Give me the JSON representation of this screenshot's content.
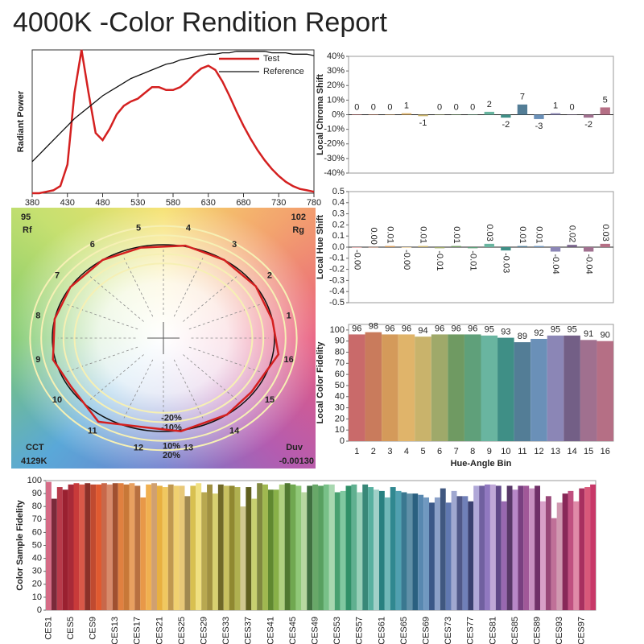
{
  "title": "4000K -Color Rendition Report",
  "chart_data": [
    {
      "type": "line",
      "ylabel": "Radiant Power",
      "x": [
        380,
        390,
        400,
        410,
        420,
        430,
        440,
        450,
        460,
        470,
        480,
        490,
        500,
        510,
        520,
        530,
        540,
        550,
        560,
        570,
        580,
        590,
        600,
        610,
        620,
        630,
        640,
        650,
        660,
        670,
        680,
        690,
        700,
        710,
        720,
        730,
        740,
        750,
        760,
        770,
        780
      ],
      "xlim": [
        380,
        780
      ],
      "xticks": [
        380,
        430,
        480,
        530,
        580,
        630,
        680,
        730,
        780
      ],
      "ylim": [
        0,
        1
      ],
      "legend": "upper right",
      "series": [
        {
          "name": "Test",
          "color": "#d42020",
          "values": [
            0,
            0,
            0.01,
            0.02,
            0.05,
            0.2,
            0.7,
            1.0,
            0.7,
            0.42,
            0.37,
            0.45,
            0.55,
            0.61,
            0.64,
            0.66,
            0.7,
            0.74,
            0.74,
            0.72,
            0.72,
            0.74,
            0.78,
            0.83,
            0.87,
            0.89,
            0.86,
            0.78,
            0.68,
            0.57,
            0.47,
            0.38,
            0.3,
            0.23,
            0.17,
            0.12,
            0.08,
            0.05,
            0.03,
            0.02,
            0.01
          ]
        },
        {
          "name": "Reference",
          "color": "#111111",
          "values": [
            0.22,
            0.27,
            0.32,
            0.37,
            0.42,
            0.47,
            0.52,
            0.56,
            0.6,
            0.64,
            0.68,
            0.71,
            0.74,
            0.77,
            0.8,
            0.82,
            0.84,
            0.86,
            0.88,
            0.9,
            0.91,
            0.93,
            0.94,
            0.95,
            0.96,
            0.97,
            0.97,
            0.98,
            0.98,
            0.99,
            0.99,
            0.99,
            0.99,
            0.99,
            0.98,
            0.98,
            0.98,
            0.97,
            0.97,
            0.97,
            0.96
          ]
        }
      ]
    },
    {
      "type": "vector",
      "rf": 95,
      "rf_label": "Rf",
      "rg": 102,
      "rg_label": "Rg",
      "cct_label": "CCT",
      "cct": "4129K",
      "duv_label": "Duv",
      "duv": "-0.00130",
      "bins": [
        1,
        2,
        3,
        4,
        5,
        6,
        7,
        8,
        9,
        10,
        11,
        12,
        13,
        14,
        15,
        16
      ],
      "rings": [
        {
          "value": -20,
          "label": "-20%"
        },
        {
          "value": -10,
          "label": "-10%"
        },
        {
          "value": 10,
          "label": "10%"
        },
        {
          "value": 20,
          "label": "20%"
        }
      ],
      "test_color": "#d42020",
      "reference_color": "#111111"
    },
    {
      "type": "bar",
      "ylabel": "Local Chroma Shift",
      "values": [
        0,
        0,
        0,
        1,
        -1,
        0,
        0,
        0,
        2,
        -2,
        7,
        -3,
        1,
        0,
        -2,
        5
      ],
      "colors": [
        "#c96a6a",
        "#c97b5c",
        "#d49a5a",
        "#e0b46a",
        "#c9b36b",
        "#9fa96a",
        "#6f9a62",
        "#5fa07a",
        "#69b5a0",
        "#3f8f86",
        "#537d96",
        "#6a90b8",
        "#8b86b6",
        "#735f86",
        "#a0708f",
        "#b56f85"
      ],
      "ylim": [
        -40,
        40
      ],
      "yticks": [
        {
          "value": -40,
          "label": "-40%"
        },
        {
          "value": -30,
          "label": "-30%"
        },
        {
          "value": -20,
          "label": "-20%"
        },
        {
          "value": -10,
          "label": "-10%"
        },
        {
          "value": 0,
          "label": "0%"
        },
        {
          "value": 10,
          "label": "10%"
        },
        {
          "value": 20,
          "label": "20%"
        },
        {
          "value": 30,
          "label": "30%"
        },
        {
          "value": 40,
          "label": "40%"
        }
      ]
    },
    {
      "type": "bar",
      "ylabel": "Local Hue Shift",
      "values": [
        -0.001,
        0.001,
        0.01,
        -0.001,
        0.01,
        -0.01,
        0.01,
        -0.01,
        0.03,
        -0.03,
        0.01,
        0.01,
        -0.04,
        0.02,
        -0.04,
        0.03
      ],
      "value_labels": [
        "-0.00",
        "0.00",
        "0.01",
        "-0.00",
        "0.01",
        "-0.01",
        "0.01",
        "-0.01",
        "0.03",
        "-0.03",
        "0.01",
        "0.01",
        "-0.04",
        "0.02",
        "-0.04",
        "0.03"
      ],
      "colors": [
        "#c96a6a",
        "#c97b5c",
        "#d49a5a",
        "#e0b46a",
        "#c9b36b",
        "#9fa96a",
        "#6f9a62",
        "#5fa07a",
        "#69b5a0",
        "#3f8f86",
        "#537d96",
        "#6a90b8",
        "#8b86b6",
        "#735f86",
        "#a0708f",
        "#b56f85"
      ],
      "ylim": [
        -0.5,
        0.5
      ],
      "yticks": [
        -0.5,
        -0.4,
        -0.3,
        -0.2,
        -0.1,
        {
          "value": 0,
          "label": "0.0"
        },
        0.1,
        0.2,
        0.3,
        0.4,
        0.5
      ]
    },
    {
      "type": "bar",
      "ylabel": "Local Color Fidelity",
      "xlabel": "Hue-Angle Bin",
      "categories": [
        1,
        2,
        3,
        4,
        5,
        6,
        7,
        8,
        9,
        10,
        11,
        12,
        13,
        14,
        15,
        16
      ],
      "values": [
        96,
        98,
        96,
        96,
        94,
        96,
        96,
        96,
        95,
        93,
        89,
        92,
        95,
        95,
        91,
        90
      ],
      "colors": [
        "#c96a6a",
        "#c97b5c",
        "#d49a5a",
        "#e0b46a",
        "#c9b36b",
        "#9fa96a",
        "#6f9a62",
        "#5fa07a",
        "#69b5a0",
        "#3f8f86",
        "#537d96",
        "#6a90b8",
        "#8b86b6",
        "#735f86",
        "#a0708f",
        "#b56f85"
      ],
      "ylim": [
        0,
        105
      ],
      "yticks": [
        0,
        10,
        20,
        30,
        40,
        50,
        60,
        70,
        80,
        90,
        100
      ]
    },
    {
      "type": "bar",
      "ylabel": "Color Sample Fidelity",
      "categories": [
        "CES1",
        null,
        null,
        null,
        "CES5",
        null,
        null,
        null,
        "CES9",
        null,
        null,
        null,
        "CES13",
        null,
        null,
        null,
        "CES17",
        null,
        null,
        null,
        "CES21",
        null,
        null,
        null,
        "CES25",
        null,
        null,
        null,
        "CES29",
        null,
        null,
        null,
        "CES33",
        null,
        null,
        null,
        "CES37",
        null,
        null,
        null,
        "CES41",
        null,
        null,
        null,
        "CES45",
        null,
        null,
        null,
        "CES49",
        null,
        null,
        null,
        "CES53",
        null,
        null,
        null,
        "CES57",
        null,
        null,
        null,
        "CES61",
        null,
        null,
        null,
        "CES65",
        null,
        null,
        null,
        "CES69",
        null,
        null,
        null,
        "CES73",
        null,
        null,
        null,
        "CES77",
        null,
        null,
        null,
        "CES81",
        null,
        null,
        null,
        "CES85",
        null,
        null,
        null,
        "CES89",
        null,
        null,
        null,
        "CES93",
        null,
        null,
        null,
        "CES97",
        null,
        null
      ],
      "values": [
        99,
        86,
        95,
        93,
        97,
        98,
        97,
        98,
        97,
        97,
        98,
        97,
        98,
        98,
        97,
        98,
        96,
        87,
        97,
        98,
        96,
        95,
        97,
        96,
        96,
        88,
        96,
        98,
        91,
        97,
        90,
        97,
        96,
        96,
        95,
        80,
        95,
        86,
        98,
        97,
        93,
        93,
        97,
        98,
        97,
        96,
        91,
        96,
        97,
        96,
        97,
        97,
        91,
        92,
        96,
        97,
        91,
        97,
        95,
        93,
        92,
        87,
        95,
        92,
        91,
        90,
        90,
        89,
        87,
        83,
        87,
        94,
        83,
        92,
        88,
        88,
        84,
        96,
        96,
        97,
        97,
        96,
        84,
        96,
        93,
        96,
        96,
        94,
        96,
        84,
        88,
        71,
        83,
        90,
        92,
        84,
        94,
        95,
        97
      ],
      "colors": [
        "#d66b86",
        "#7a2a3a",
        "#b83a4a",
        "#9a2030",
        "#a82a38",
        "#c83a3a",
        "#d85848",
        "#8a3028",
        "#c04a30",
        "#e05a30",
        "#c8684a",
        "#d88a6a",
        "#a05030",
        "#e08040",
        "#c87838",
        "#e8a060",
        "#b87040",
        "#e89848",
        "#f0b050",
        "#d0a070",
        "#e8b040",
        "#f0c860",
        "#c09850",
        "#f0d070",
        "#e8c878",
        "#a08850",
        "#d8c050",
        "#f0e080",
        "#b8a850",
        "#a09040",
        "#d8d070",
        "#706828",
        "#c8c060",
        "#908830",
        "#b0b050",
        "#d0c890",
        "#606020",
        "#c8d070",
        "#808840",
        "#a0b850",
        "#608830",
        "#88b048",
        "#b0d080",
        "#507830",
        "#70a850",
        "#90c878",
        "#b8d8a0",
        "#407040",
        "#68a868",
        "#58a060",
        "#78c088",
        "#a8d8b0",
        "#48a070",
        "#80c8a0",
        "#309068",
        "#60b090",
        "#98d0b8",
        "#388878",
        "#58b0a0",
        "#a0d0c8",
        "#288080",
        "#70b8b8",
        "#308890",
        "#50a0b0",
        "#3a7890",
        "#6090a8",
        "#2a6080",
        "#5888b0",
        "#7098c0",
        "#3a5888",
        "#8aa0c8",
        "#405880",
        "#6078b0",
        "#a0a8d0",
        "#505888",
        "#7080b8",
        "#3a4070",
        "#b0a8d8",
        "#7060a0",
        "#9078c0",
        "#c0a8d8",
        "#604888",
        "#9868b0",
        "#583868",
        "#b888c8",
        "#784080",
        "#a05898",
        "#c890c0",
        "#703068",
        "#d8a0c8",
        "#984878",
        "#c07098",
        "#d098b0",
        "#882858",
        "#c05080",
        "#e08aa8",
        "#a83060",
        "#d8587a",
        "#c83868"
      ],
      "ylim": [
        0,
        100
      ],
      "yticks": [
        0,
        10,
        20,
        30,
        40,
        50,
        60,
        70,
        80,
        90,
        100
      ]
    }
  ]
}
